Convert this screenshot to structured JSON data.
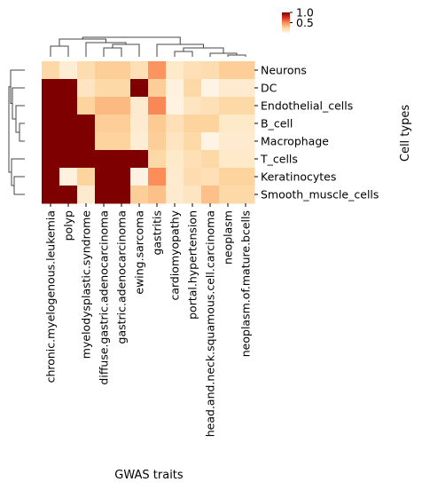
{
  "chart_data": {
    "type": "heatmap",
    "title": "",
    "xlabel": "GWAS traits",
    "ylabel": "Cell types",
    "x": [
      "chronic.myelogenous.leukemia",
      "polyp",
      "myelodysplastic.syndrome",
      "diffuse.gastric.adenocarcinoma",
      "gastric.adenocarcinoma",
      "ewing.sarcoma",
      "gastritis",
      "cardiomyopathy",
      "portal.hypertension",
      "head.and.neck.squamous.cell.carcinoma",
      "neoplasm",
      "neoplasm.of.mature.bcells"
    ],
    "y": [
      "Neurons",
      "DC",
      "Endothelial_cells",
      "B_cell",
      "Macrophage",
      "T_cells",
      "Keratinocytes",
      "Smooth_muscle_cells"
    ],
    "values": [
      [
        0.22,
        0.08,
        0.2,
        0.28,
        0.28,
        0.18,
        0.48,
        0.12,
        0.18,
        0.2,
        0.28,
        0.28
      ],
      [
        1.0,
        1.0,
        0.15,
        0.22,
        0.22,
        1.0,
        0.28,
        0.05,
        0.22,
        0.03,
        0.1,
        0.1
      ],
      [
        1.0,
        1.0,
        0.25,
        0.38,
        0.38,
        0.1,
        0.52,
        0.04,
        0.15,
        0.18,
        0.22,
        0.22
      ],
      [
        1.0,
        1.0,
        1.0,
        0.28,
        0.28,
        0.1,
        0.3,
        0.18,
        0.25,
        0.25,
        0.12,
        0.12
      ],
      [
        1.0,
        1.0,
        1.0,
        0.25,
        0.25,
        0.08,
        0.28,
        0.15,
        0.22,
        0.03,
        0.1,
        0.1
      ],
      [
        1.0,
        1.0,
        1.0,
        1.0,
        1.0,
        1.0,
        0.22,
        0.12,
        0.18,
        0.22,
        0.12,
        0.12
      ],
      [
        1.0,
        0.05,
        0.25,
        1.0,
        1.0,
        0.04,
        0.5,
        0.1,
        0.2,
        0.18,
        0.25,
        0.25
      ],
      [
        1.0,
        1.0,
        0.1,
        1.0,
        1.0,
        0.28,
        0.35,
        0.1,
        0.15,
        0.35,
        0.22,
        0.22
      ]
    ],
    "colorbar": {
      "range": [
        0,
        1
      ],
      "ticks": [
        "0.5",
        "1.0"
      ],
      "colormap": "OrRd"
    },
    "dendrograms": {
      "rows": true,
      "columns": true
    },
    "grid": false
  }
}
